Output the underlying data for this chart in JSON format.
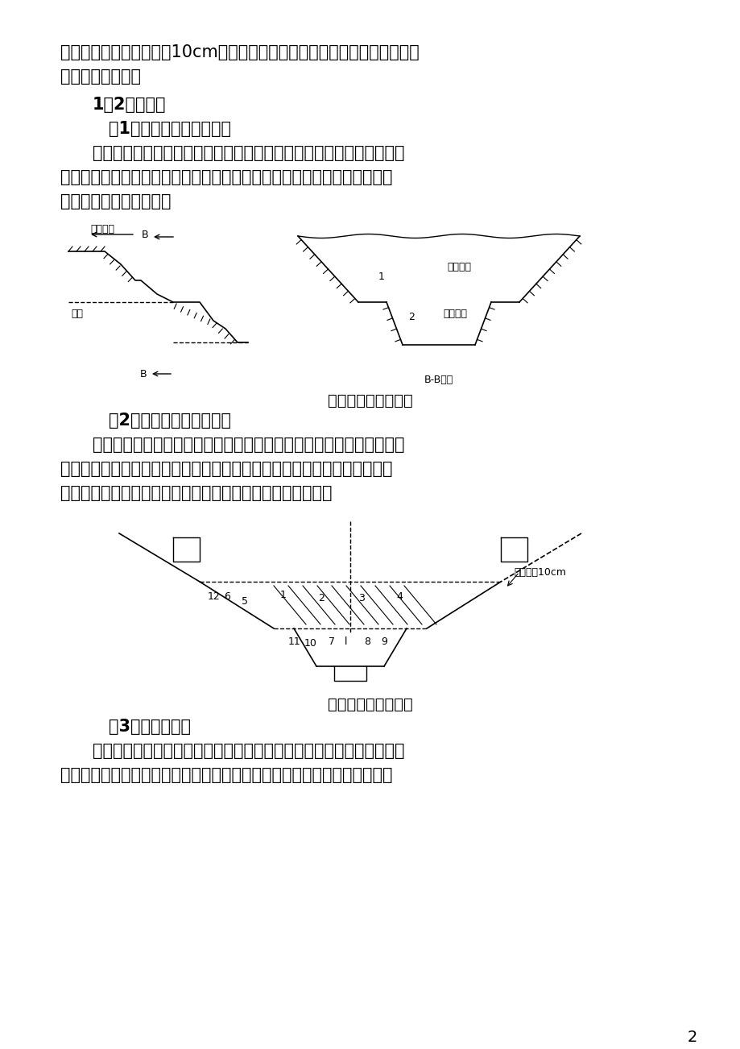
{
  "bg_color": "#ffffff",
  "text_color": "#000000",
  "page_num": "2",
  "para1": "厚度，开挖时开口线加宽10cm。边桩测量过程中，必需认真审核设计图纸并",
  "para1b": "加强测量双检测。",
  "heading1": "1．2开挖方法",
  "subhead1": "（1）多层横向全宽掘进法",
  "para2": "当路堑较深，同时为扩大施工操作面时，横向全宽掘进亦可分成两个或",
  "para2b": "两个以上的阶梯，同时进行分层开挖。每层阶梯留有运输路线，并注意临时",
  "para2c": "排水及防止上下层干扰。",
  "fig1_caption": "多层横向全宽掘进法",
  "subhead2": "（2）多层纵向通道掘进法",
  "para3": "对于土石方量比较集中的深路堑，可采取双层纵向通道掘进法，即先沿",
  "para3b": "路堑纵向挖掘出一条通道，然后再沿此通道两侧进行拓宽，即可避免单层深",
  "para3c": "度过大，又可扩大作业面，同时对施工临时排水可用做导沟。",
  "fig2_caption": "多层纵向通道掘进法",
  "subhead3": "（3）混合掘进法",
  "para4": "对于特别深而长的深路堑，土石方量很大，为扩大施工作业面和加速施",
  "para4b": "工进度，也可采用上述两种方法的混合掘进法，先沿纵向挖出一条主通道，"
}
